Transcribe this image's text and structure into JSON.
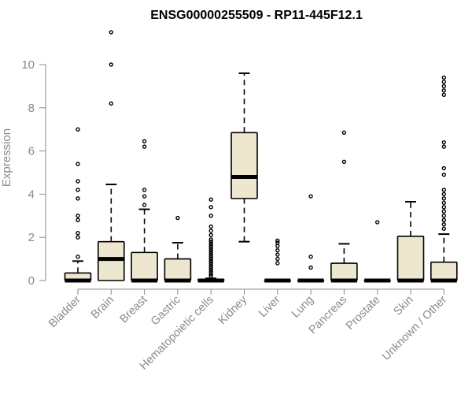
{
  "chart_data": {
    "type": "box",
    "title": "ENSG00000255509 - RP11-445F12.1",
    "ylabel": "Expression",
    "ylim": [
      -0.4,
      11.6
    ],
    "yticks": [
      0,
      2,
      4,
      6,
      8,
      10
    ],
    "colors": {
      "box_fill": "#ede7cf",
      "stroke": "#000000",
      "axis": "#8a8a8a"
    },
    "categories": [
      "Bladder",
      "Brain",
      "Breast",
      "Gastric",
      "Hematopoietic cells",
      "Kidney",
      "Liver",
      "Lung",
      "Pancreas",
      "Prostate",
      "Skin",
      "Unknown / Other"
    ],
    "boxes": [
      {
        "q1": 0,
        "median": 0,
        "q3": 0.35,
        "whisker_low": 0,
        "whisker_high": 0.9,
        "outliers": [
          1.1,
          2.0,
          2.2,
          2.8,
          3.0,
          3.8,
          4.2,
          4.6,
          5.4,
          7.0
        ]
      },
      {
        "q1": 0,
        "median": 1.0,
        "q3": 1.8,
        "whisker_low": 0,
        "whisker_high": 4.45,
        "outliers": [
          8.2,
          10.0,
          11.5
        ]
      },
      {
        "q1": 0,
        "median": 0,
        "q3": 1.3,
        "whisker_low": 0,
        "whisker_high": 3.3,
        "outliers": [
          3.5,
          3.9,
          4.2,
          6.2,
          6.45
        ]
      },
      {
        "q1": 0,
        "median": 0,
        "q3": 1.0,
        "whisker_low": 0,
        "whisker_high": 1.75,
        "outliers": [
          2.9
        ]
      },
      {
        "q1": 0,
        "median": 0,
        "q3": 0.05,
        "whisker_low": 0,
        "whisker_high": 0.1,
        "outliers": [
          0.2,
          0.3,
          0.4,
          0.5,
          0.6,
          0.7,
          0.8,
          0.9,
          1.0,
          1.1,
          1.2,
          1.3,
          1.4,
          1.5,
          1.6,
          1.7,
          1.8,
          1.9,
          2.1,
          2.3,
          2.5,
          3.0,
          3.4,
          3.75
        ]
      },
      {
        "q1": 3.8,
        "median": 4.8,
        "q3": 6.85,
        "whisker_low": 1.8,
        "whisker_high": 9.6,
        "outliers": []
      },
      {
        "q1": 0,
        "median": 0,
        "q3": 0,
        "whisker_low": 0,
        "whisker_high": 0,
        "outliers": [
          0.8,
          1.0,
          1.2,
          1.4,
          1.6,
          1.75,
          1.85
        ]
      },
      {
        "q1": 0,
        "median": 0,
        "q3": 0,
        "whisker_low": 0,
        "whisker_high": 0,
        "outliers": [
          0.6,
          1.1,
          3.9
        ]
      },
      {
        "q1": 0,
        "median": 0,
        "q3": 0.8,
        "whisker_low": 0,
        "whisker_high": 1.7,
        "outliers": [
          5.5,
          6.85
        ]
      },
      {
        "q1": 0,
        "median": 0,
        "q3": 0,
        "whisker_low": 0,
        "whisker_high": 0,
        "outliers": [
          2.7
        ]
      },
      {
        "q1": 0,
        "median": 0,
        "q3": 2.05,
        "whisker_low": 0,
        "whisker_high": 3.65,
        "outliers": []
      },
      {
        "q1": 0,
        "median": 0,
        "q3": 0.85,
        "whisker_low": 0,
        "whisker_high": 2.15,
        "outliers": [
          2.4,
          2.6,
          2.8,
          3.0,
          3.2,
          3.4,
          3.6,
          3.8,
          4.0,
          4.2,
          4.9,
          5.2,
          6.2,
          6.4,
          8.6,
          8.8,
          9.0,
          9.2,
          9.4
        ]
      }
    ]
  }
}
